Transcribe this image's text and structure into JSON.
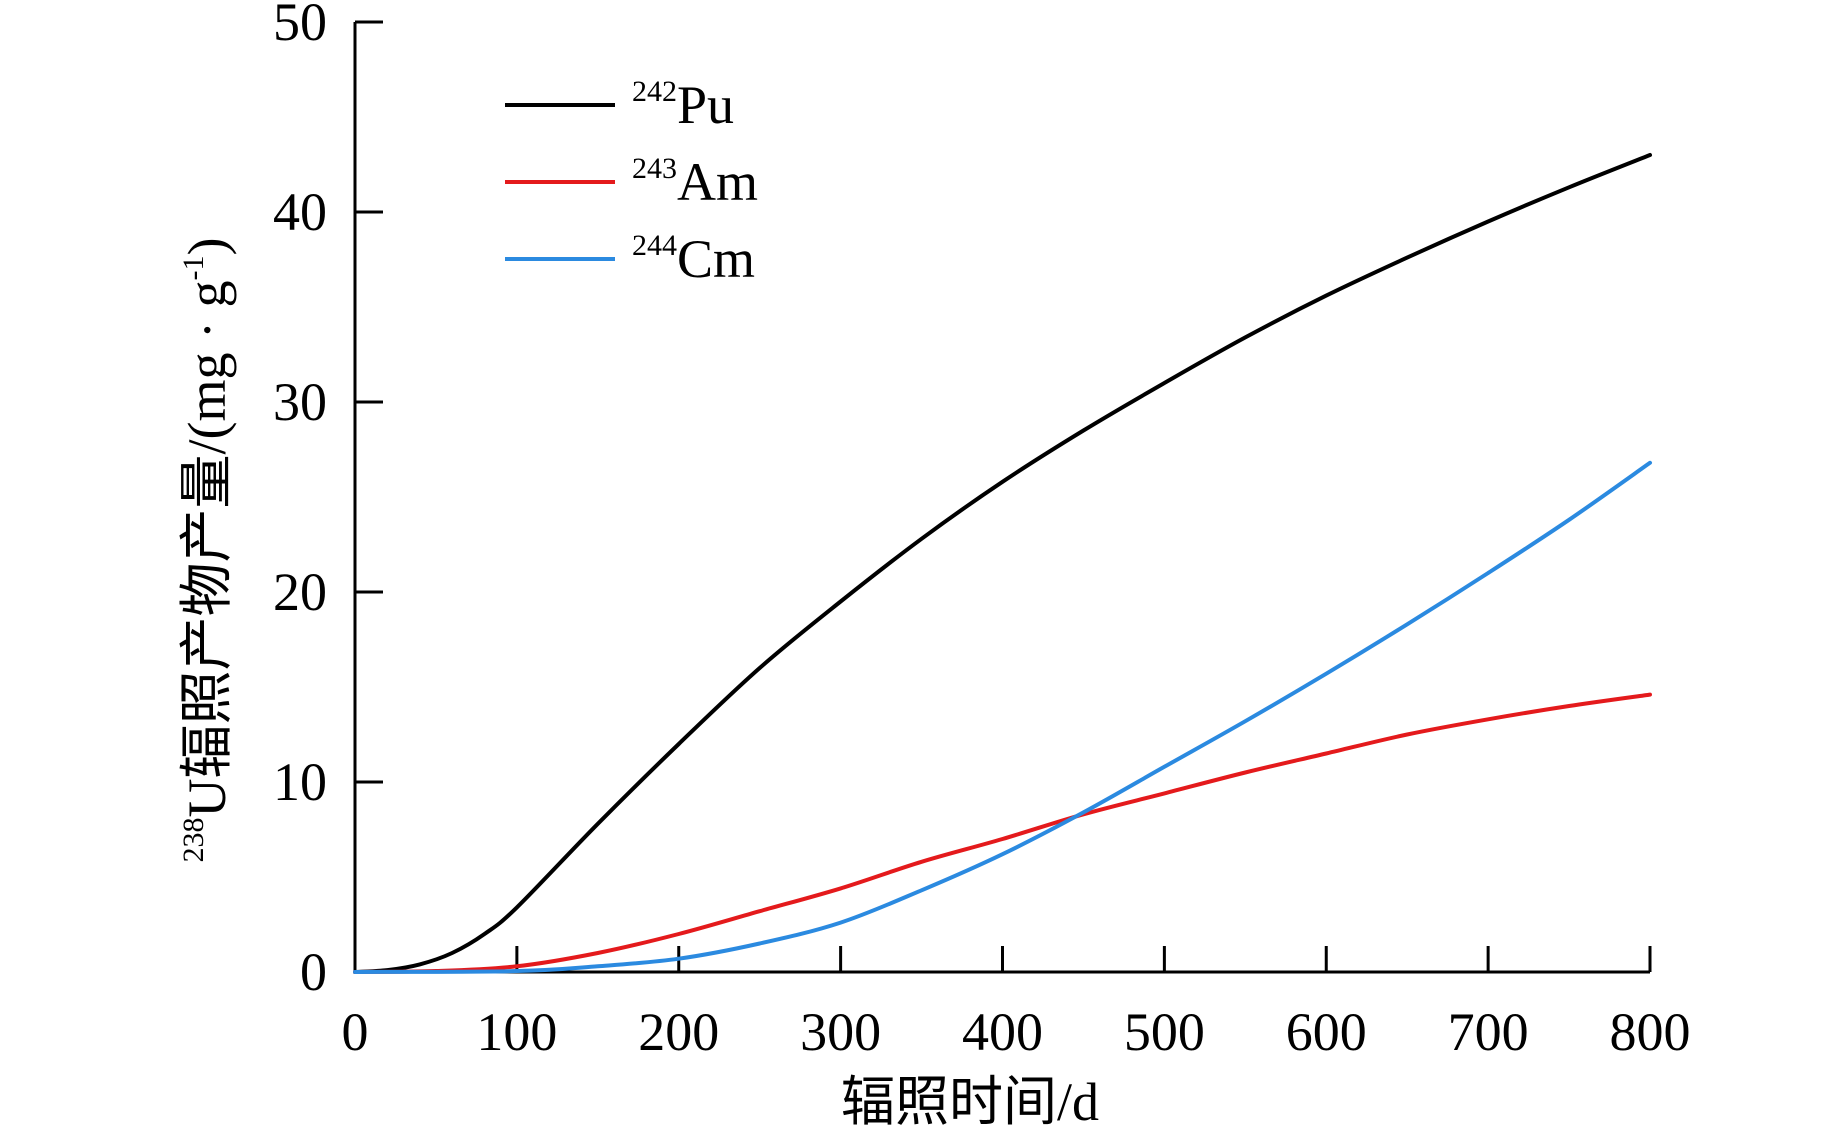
{
  "chart_data": {
    "type": "line",
    "xlabel": "辐照时间/d",
    "ylabel": {
      "sup": "238",
      "main": "U辐照产物产量/(mg · g",
      "unit_sup": "-1",
      "close": ")"
    },
    "xlim": [
      0,
      800
    ],
    "ylim": [
      0,
      50
    ],
    "xticks": [
      0,
      100,
      200,
      300,
      400,
      500,
      600,
      700,
      800
    ],
    "yticks": [
      0,
      10,
      20,
      30,
      40,
      50
    ],
    "grid": false,
    "legend_position": "top-left",
    "series": [
      {
        "name": "Pu",
        "isotope": "242",
        "color": "#000000",
        "x": [
          0,
          20,
          40,
          60,
          80,
          100,
          150,
          200,
          250,
          300,
          350,
          400,
          450,
          500,
          550,
          600,
          650,
          700,
          750,
          800
        ],
        "y": [
          0,
          0.1,
          0.4,
          1.0,
          2.0,
          3.4,
          7.8,
          12.0,
          16.0,
          19.5,
          22.8,
          25.8,
          28.5,
          31.0,
          33.4,
          35.6,
          37.6,
          39.5,
          41.3,
          43.0
        ]
      },
      {
        "name": "Am",
        "isotope": "243",
        "color": "#e41a1c",
        "x": [
          0,
          50,
          100,
          150,
          200,
          250,
          300,
          350,
          400,
          450,
          500,
          550,
          600,
          650,
          700,
          750,
          800
        ],
        "y": [
          0,
          0.05,
          0.3,
          1.0,
          2.0,
          3.2,
          4.4,
          5.8,
          7.0,
          8.3,
          9.4,
          10.5,
          11.5,
          12.5,
          13.3,
          14.0,
          14.6
        ]
      },
      {
        "name": "Cm",
        "isotope": "244",
        "color": "#2b8ae0",
        "x": [
          0,
          100,
          150,
          200,
          250,
          300,
          350,
          400,
          450,
          500,
          550,
          600,
          650,
          700,
          750,
          800
        ],
        "y": [
          0,
          0.05,
          0.3,
          0.7,
          1.5,
          2.6,
          4.3,
          6.2,
          8.4,
          10.8,
          13.2,
          15.7,
          18.3,
          21.0,
          23.8,
          26.8
        ]
      }
    ]
  }
}
